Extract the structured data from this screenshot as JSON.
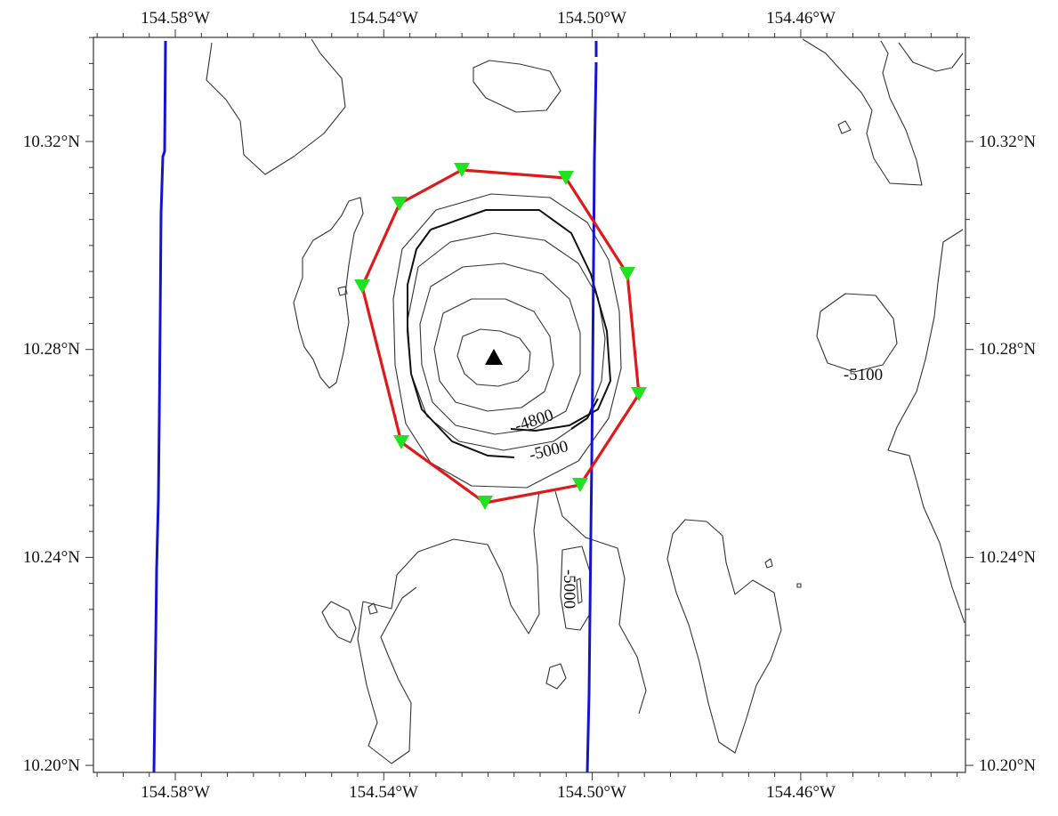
{
  "axes": {
    "x_ticks": [
      "154.58°W",
      "154.54°W",
      "154.50°W",
      "154.46°W"
    ],
    "y_ticks": [
      "10.32°N",
      "10.28°N",
      "10.24°N",
      "10.20°N"
    ]
  },
  "contour_labels": [
    "-4800",
    "-5000",
    "-5000",
    "-5100"
  ],
  "colors": {
    "frame": "#333333",
    "contour": "#333333",
    "track": "#1414cc",
    "network": "#e01a1a",
    "station": "#22e022",
    "summit": "#000000"
  },
  "markers": {
    "summit": "black-triangle",
    "stations": "green-inverted-triangle",
    "station_count": 9
  }
}
